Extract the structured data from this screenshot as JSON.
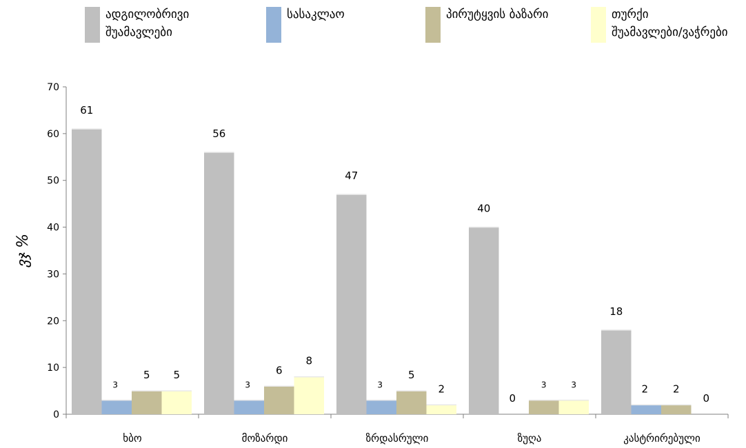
{
  "chart_data": {
    "type": "bar",
    "title": "",
    "xlabel": "",
    "ylabel": "ვჯ %",
    "ylim": [
      0,
      70
    ],
    "yticks": [
      0,
      10,
      20,
      30,
      40,
      50,
      60,
      70
    ],
    "grid": false,
    "legend_position": "top",
    "categories": [
      "ხბო",
      "მოზარდი",
      "ზრდასრული",
      "ზუღა",
      "კასტრირებული"
    ],
    "series": [
      {
        "name": "ადგილობრივი\nშუამავლები",
        "color": "#bfbfbf",
        "values": [
          61,
          56,
          47,
          40,
          18
        ],
        "labels": [
          "61",
          "56",
          "47",
          "40",
          "18"
        ]
      },
      {
        "name": "სასაკლაო",
        "color": "#94b3d8",
        "values": [
          3,
          3,
          3,
          0,
          2
        ],
        "labels": [
          "3",
          "3",
          "3",
          "0",
          "2"
        ]
      },
      {
        "name": "პირუტყვის ბაზარი",
        "color": "#c4bd97",
        "values": [
          5,
          6,
          5,
          3,
          2
        ],
        "labels": [
          "5",
          "6",
          "5",
          "3",
          "2"
        ]
      },
      {
        "name": "თურქი\nშუამავლები/ვაჭრები",
        "color": "#ffffcc",
        "values": [
          5,
          8,
          2,
          3,
          0
        ],
        "labels": [
          "5",
          "8",
          "2",
          "3",
          "0"
        ]
      }
    ]
  }
}
